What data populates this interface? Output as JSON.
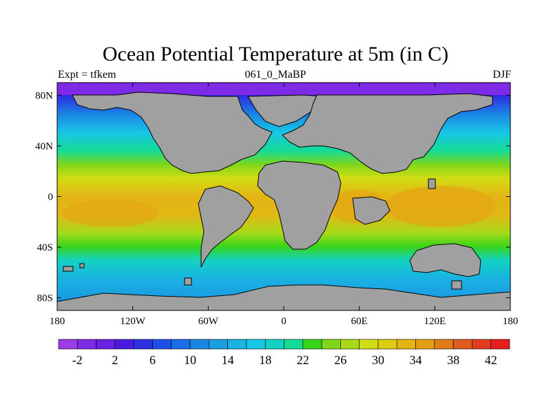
{
  "title": "Ocean Potential Temperature at 5m (in C)",
  "subtitle_left": "Expt = tfkem",
  "subtitle_center": "061_0_MaBP",
  "subtitle_right": "DJF",
  "map": {
    "x_range": [
      -180,
      180
    ],
    "y_range": [
      -90,
      90
    ],
    "x_ticks": [
      {
        "value": -180,
        "label": "180"
      },
      {
        "value": -120,
        "label": "120W"
      },
      {
        "value": -60,
        "label": "60W"
      },
      {
        "value": 0,
        "label": "0"
      },
      {
        "value": 60,
        "label": "60E"
      },
      {
        "value": 120,
        "label": "120E"
      },
      {
        "value": 180,
        "label": "180"
      }
    ],
    "y_ticks": [
      {
        "value": 80,
        "label": "80N"
      },
      {
        "value": 40,
        "label": "40N"
      },
      {
        "value": 0,
        "label": "0"
      },
      {
        "value": -40,
        "label": "40S"
      },
      {
        "value": -80,
        "label": "80S"
      }
    ],
    "land_color": "#a0a0a0"
  },
  "colorbar": {
    "colors": [
      "#9b3ce6",
      "#7e2be8",
      "#6a1fe3",
      "#4b1ae0",
      "#2e2fe0",
      "#1c4fe6",
      "#1b6ee8",
      "#1a86e4",
      "#1a9ee2",
      "#1ab2e2",
      "#18c6e6",
      "#14d2c2",
      "#14dc94",
      "#36d51a",
      "#7fd61a",
      "#a8da1a",
      "#d2dc14",
      "#dccd12",
      "#e4b414",
      "#e49e14",
      "#e07c18",
      "#e05c1c",
      "#e23c20",
      "#e61e1e"
    ],
    "labels": [
      {
        "value": -2,
        "label": "-2"
      },
      {
        "value": 2,
        "label": "2"
      },
      {
        "value": 6,
        "label": "6"
      },
      {
        "value": 10,
        "label": "10"
      },
      {
        "value": 14,
        "label": "14"
      },
      {
        "value": 18,
        "label": "18"
      },
      {
        "value": 22,
        "label": "22"
      },
      {
        "value": 26,
        "label": "26"
      },
      {
        "value": 30,
        "label": "30"
      },
      {
        "value": 34,
        "label": "34"
      },
      {
        "value": 38,
        "label": "38"
      },
      {
        "value": 42,
        "label": "42"
      }
    ]
  }
}
